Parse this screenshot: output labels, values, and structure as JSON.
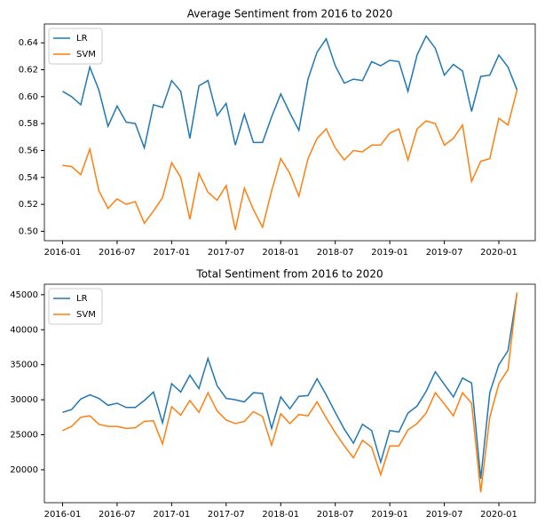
{
  "chart_data": [
    {
      "type": "line",
      "title": "Average Sentiment from 2016 to 2020",
      "x": [
        "2016-01",
        "2016-02",
        "2016-03",
        "2016-04",
        "2016-05",
        "2016-06",
        "2016-07",
        "2016-08",
        "2016-09",
        "2016-10",
        "2016-11",
        "2016-12",
        "2017-01",
        "2017-02",
        "2017-03",
        "2017-04",
        "2017-05",
        "2017-06",
        "2017-07",
        "2017-08",
        "2017-09",
        "2017-10",
        "2017-11",
        "2017-12",
        "2018-01",
        "2018-02",
        "2018-03",
        "2018-04",
        "2018-05",
        "2018-06",
        "2018-07",
        "2018-08",
        "2018-09",
        "2018-10",
        "2018-11",
        "2018-12",
        "2019-01",
        "2019-02",
        "2019-03",
        "2019-04",
        "2019-05",
        "2019-06",
        "2019-07",
        "2019-08",
        "2019-09",
        "2019-10",
        "2019-11",
        "2019-12",
        "2020-01",
        "2020-02",
        "2020-03"
      ],
      "series": [
        {
          "name": "LR",
          "color": "#1f77b4",
          "values": [
            0.604,
            0.6,
            0.594,
            0.622,
            0.605,
            0.578,
            0.593,
            0.581,
            0.58,
            0.562,
            0.594,
            0.592,
            0.612,
            0.604,
            0.569,
            0.608,
            0.612,
            0.586,
            0.595,
            0.564,
            0.587,
            0.566,
            0.566,
            0.585,
            0.602,
            0.588,
            0.575,
            0.613,
            0.633,
            0.643,
            0.623,
            0.61,
            0.613,
            0.612,
            0.626,
            0.623,
            0.627,
            0.626,
            0.604,
            0.631,
            0.645,
            0.636,
            0.616,
            0.624,
            0.619,
            0.589,
            0.615,
            0.616,
            0.631,
            0.622,
            0.605
          ]
        },
        {
          "name": "SVM",
          "color": "#ff7f0e",
          "values": [
            0.549,
            0.548,
            0.542,
            0.561,
            0.53,
            0.517,
            0.524,
            0.52,
            0.522,
            0.506,
            0.515,
            0.525,
            0.551,
            0.54,
            0.509,
            0.543,
            0.529,
            0.523,
            0.534,
            0.501,
            0.532,
            0.516,
            0.503,
            0.53,
            0.554,
            0.543,
            0.526,
            0.554,
            0.569,
            0.576,
            0.562,
            0.553,
            0.56,
            0.559,
            0.564,
            0.564,
            0.573,
            0.576,
            0.553,
            0.576,
            0.582,
            0.58,
            0.564,
            0.569,
            0.579,
            0.537,
            0.552,
            0.554,
            0.584,
            0.579,
            0.605
          ]
        }
      ],
      "xlim": [
        "2015-11",
        "2020-05"
      ],
      "xticks": [
        "2016-01",
        "2016-07",
        "2017-01",
        "2017-07",
        "2018-01",
        "2018-07",
        "2019-01",
        "2019-07",
        "2020-01"
      ],
      "ylim": [
        0.493,
        0.654
      ],
      "yticks": [
        {
          "value": 0.5,
          "label": "0.50"
        },
        0.52,
        0.54,
        0.56,
        0.58,
        {
          "value": 0.6,
          "label": "0.60"
        },
        0.62,
        0.64
      ],
      "legend": "upper left"
    },
    {
      "type": "line",
      "title": "Total Sentiment from 2016 to 2020",
      "x": [
        "2016-01",
        "2016-02",
        "2016-03",
        "2016-04",
        "2016-05",
        "2016-06",
        "2016-07",
        "2016-08",
        "2016-09",
        "2016-10",
        "2016-11",
        "2016-12",
        "2017-01",
        "2017-02",
        "2017-03",
        "2017-04",
        "2017-05",
        "2017-06",
        "2017-07",
        "2017-08",
        "2017-09",
        "2017-10",
        "2017-11",
        "2017-12",
        "2018-01",
        "2018-02",
        "2018-03",
        "2018-04",
        "2018-05",
        "2018-06",
        "2018-07",
        "2018-08",
        "2018-09",
        "2018-10",
        "2018-11",
        "2018-12",
        "2019-01",
        "2019-02",
        "2019-03",
        "2019-04",
        "2019-05",
        "2019-06",
        "2019-07",
        "2019-08",
        "2019-09",
        "2019-10",
        "2019-11",
        "2019-12",
        "2020-01",
        "2020-02",
        "2020-03"
      ],
      "series": [
        {
          "name": "LR",
          "color": "#1f77b4",
          "values": [
            28200,
            28600,
            30100,
            30700,
            30200,
            29200,
            29500,
            28900,
            28900,
            29900,
            31100,
            26700,
            32300,
            31100,
            33500,
            31600,
            35900,
            32000,
            30200,
            30000,
            29700,
            31000,
            30900,
            25900,
            30400,
            28700,
            30500,
            30600,
            33000,
            30700,
            28200,
            25800,
            23800,
            26500,
            25600,
            21100,
            25600,
            25400,
            28100,
            29100,
            31200,
            34000,
            32200,
            30400,
            33100,
            32400,
            18700,
            31000,
            35000,
            37000,
            45300
          ]
        },
        {
          "name": "SVM",
          "color": "#ff7f0e",
          "values": [
            25600,
            26200,
            27500,
            27700,
            26500,
            26200,
            26200,
            25900,
            26000,
            26900,
            27000,
            23700,
            29000,
            27800,
            29900,
            28200,
            31000,
            28400,
            27100,
            26600,
            26900,
            28300,
            27600,
            23500,
            28000,
            26600,
            27900,
            27700,
            29700,
            27400,
            25300,
            23400,
            21700,
            24200,
            23200,
            19300,
            23400,
            23400,
            25700,
            26600,
            28100,
            31000,
            29400,
            27700,
            31000,
            29500,
            16800,
            27500,
            32300,
            34300,
            45300
          ]
        }
      ],
      "xlim": [
        "2015-11",
        "2020-05"
      ],
      "xticks": [
        "2016-01",
        "2016-07",
        "2017-01",
        "2017-07",
        "2018-01",
        "2018-07",
        "2019-01",
        "2019-07",
        "2020-01"
      ],
      "ylim": [
        15300,
        46500
      ],
      "yticks": [
        20000,
        25000,
        30000,
        35000,
        40000,
        45000
      ],
      "legend": "upper left"
    }
  ]
}
